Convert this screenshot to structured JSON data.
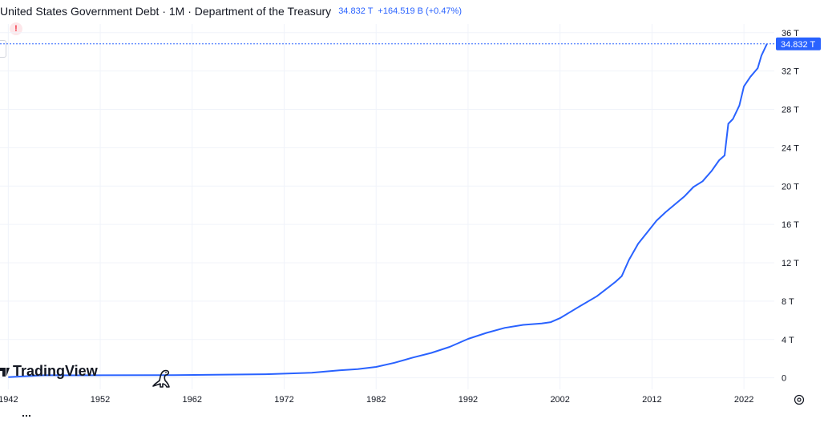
{
  "header": {
    "title": "United States Government Debt · 1M · Department of the Treasury",
    "last_value": "34.832 T",
    "change": "+164.519 B (+0.47%)"
  },
  "alert_label": "!",
  "price_tag": "34.832 T",
  "logo_text": "TradingView",
  "icons": {
    "alert": "alert-icon",
    "logo": "tradingview-logo-icon",
    "mascot": "dinosaur-mascot-icon",
    "settings": "settings-gear-icon"
  },
  "colors": {
    "line": "#2962ff",
    "price_tag_bg": "#2962ff",
    "grid": "#f0f3fa",
    "axis_text": "#131722"
  },
  "chart_data": {
    "type": "line",
    "title": "United States Government Debt",
    "xlabel": "",
    "ylabel": "",
    "x_unit": "year",
    "y_unit": "trillion USD",
    "xlim": [
      1941.1,
      2025.3
    ],
    "ylim": [
      -1.2,
      36.9
    ],
    "x_ticks": [
      1942,
      1952,
      1962,
      1972,
      1982,
      1992,
      2002,
      2012,
      2022
    ],
    "x_tick_labels": [
      "1942",
      "1952",
      "1962",
      "1972",
      "1982",
      "1992",
      "2002",
      "2012",
      "2022"
    ],
    "y_ticks": [
      0,
      4,
      8,
      12,
      16,
      20,
      24,
      28,
      32,
      36
    ],
    "y_tick_labels": [
      "0",
      "4 T",
      "8 T",
      "12 T",
      "16 T",
      "20 T",
      "24 T",
      "28 T",
      "32 T",
      "36 T"
    ],
    "grid": true,
    "last_value": 34.832,
    "series": [
      {
        "name": "",
        "x": [
          1942,
          1946,
          1950,
          1960,
          1970,
          1975,
          1978,
          1980,
          1982,
          1984,
          1986,
          1988,
          1990,
          1992,
          1994,
          1996,
          1998,
          2000,
          2001,
          2002,
          2004,
          2006,
          2008,
          2008.7,
          2009.5,
          2010.5,
          2011.5,
          2012.5,
          2013.5,
          2014.5,
          2015.5,
          2016.5,
          2017.5,
          2018.5,
          2019.3,
          2019.9,
          2020.3,
          2020.8,
          2021.5,
          2022,
          2022.7,
          2023.5,
          2023.9,
          2024.5
        ],
        "y": [
          0.07,
          0.27,
          0.26,
          0.29,
          0.38,
          0.53,
          0.78,
          0.91,
          1.14,
          1.57,
          2.12,
          2.6,
          3.23,
          4.06,
          4.69,
          5.22,
          5.53,
          5.67,
          5.81,
          6.23,
          7.38,
          8.51,
          9.99,
          10.6,
          12.3,
          14.0,
          15.2,
          16.4,
          17.3,
          18.1,
          18.9,
          19.9,
          20.5,
          21.6,
          22.7,
          23.2,
          26.5,
          27.0,
          28.4,
          30.4,
          31.4,
          32.3,
          33.6,
          34.832
        ]
      }
    ]
  }
}
